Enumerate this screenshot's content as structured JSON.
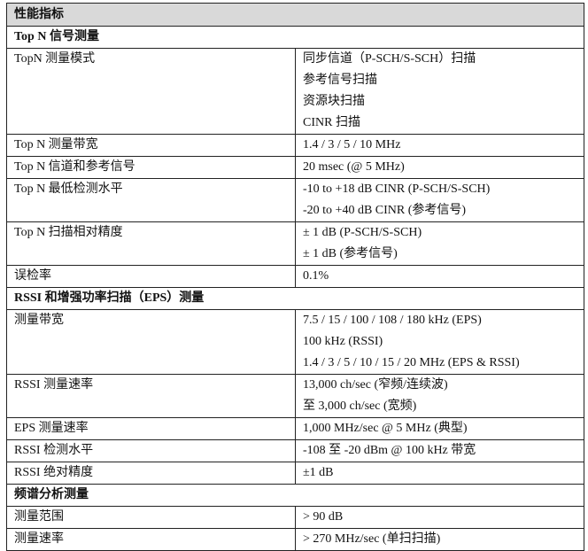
{
  "title": "性能指标",
  "sections": [
    {
      "heading": "Top N 信号测量",
      "rows": [
        {
          "label": "TopN 测量模式",
          "values": [
            "同步信道（P-SCH/S-SCH）扫描",
            "参考信号扫描",
            "资源块扫描",
            "CINR 扫描"
          ]
        },
        {
          "label": "Top N 测量带宽",
          "values": [
            "1.4 / 3 / 5 / 10 MHz"
          ]
        },
        {
          "label": "Top N 信道和参考信号",
          "values": [
            "20 msec (@ 5 MHz)"
          ]
        },
        {
          "label": "Top N 最低检测水平",
          "values": [
            "-10 to +18 dB CINR (P-SCH/S-SCH)",
            "-20 to +40 dB CINR (参考信号)"
          ]
        },
        {
          "label": "Top N 扫描相对精度",
          "values": [
            "± 1 dB (P-SCH/S-SCH)",
            "± 1 dB (参考信号)"
          ]
        },
        {
          "label": "误检率",
          "values": [
            "0.1%"
          ]
        }
      ]
    },
    {
      "heading": "RSSI 和增强功率扫描（EPS）测量",
      "rows": [
        {
          "label": "测量带宽",
          "values": [
            "7.5 / 15 / 100 / 108 / 180 kHz (EPS)",
            "100 kHz (RSSI)",
            "1.4 / 3 / 5 / 10 / 15 / 20 MHz (EPS & RSSI)"
          ]
        },
        {
          "label": "RSSI 测量速率",
          "values": [
            "13,000 ch/sec (窄频/连续波)",
            "至 3,000 ch/sec (宽频)"
          ]
        },
        {
          "label": "EPS 测量速率",
          "values": [
            "1,000 MHz/sec @ 5 MHz (典型)"
          ]
        },
        {
          "label": "RSSI 检测水平",
          "values": [
            "-108 至 -20 dBm @ 100 kHz 带宽"
          ]
        },
        {
          "label": "RSSI 绝对精度",
          "values": [
            "±1 dB"
          ]
        }
      ]
    },
    {
      "heading": "频谱分析测量",
      "rows": [
        {
          "label": "测量范围",
          "values": [
            "> 90 dB"
          ]
        },
        {
          "label": "测量速率",
          "values": [
            "> 270 MHz/sec (单扫扫描)"
          ]
        }
      ]
    }
  ]
}
